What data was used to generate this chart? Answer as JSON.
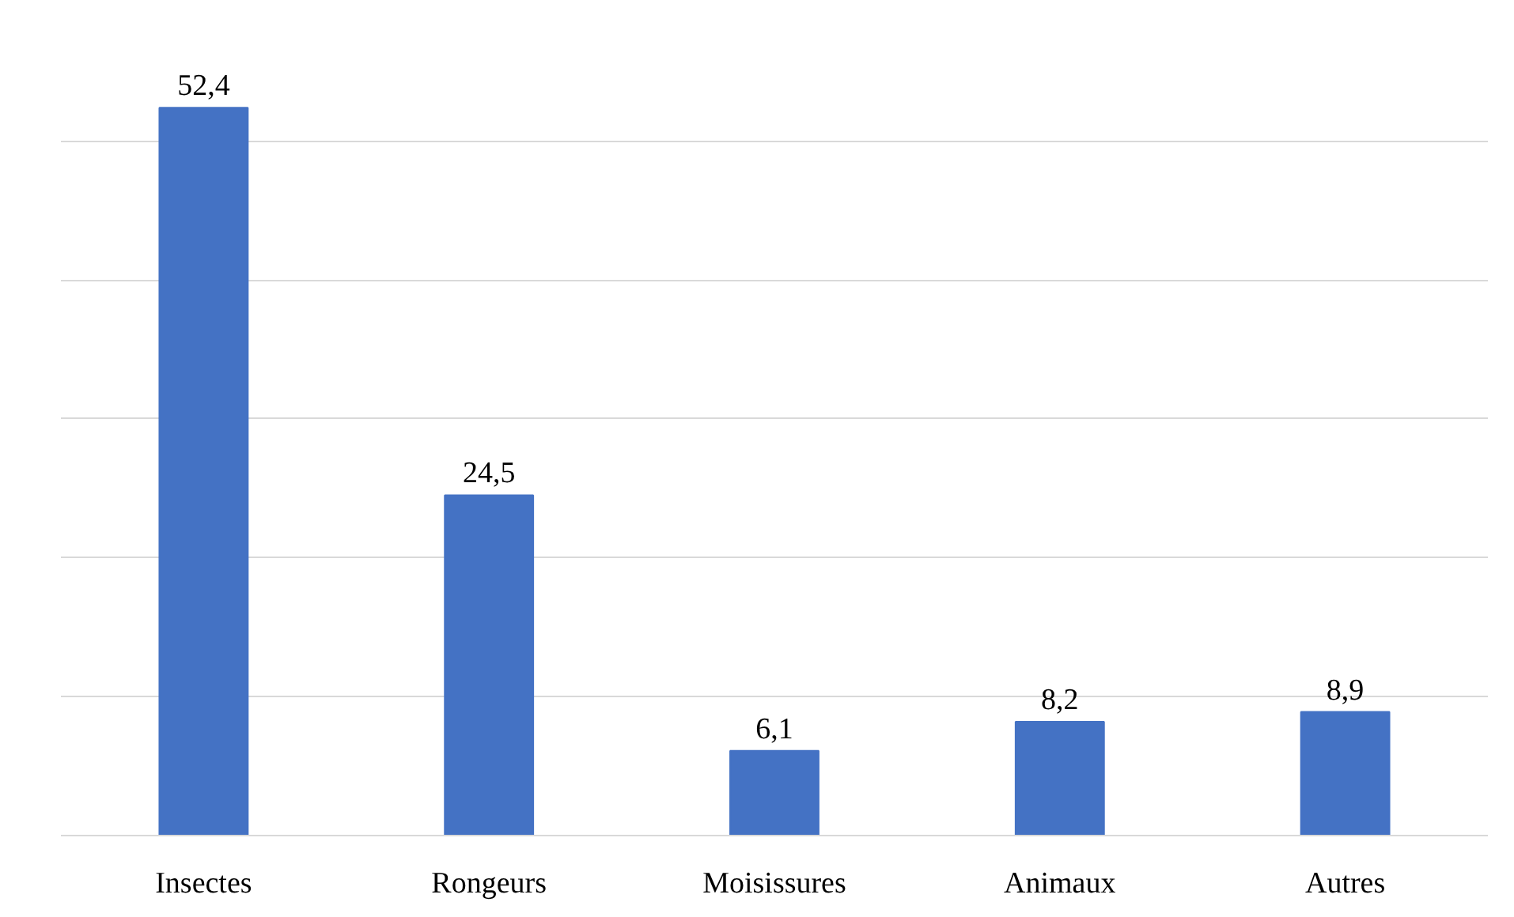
{
  "chart_data": {
    "type": "bar",
    "categories": [
      "Insectes",
      "Rongeurs",
      "Moisissures",
      "Animaux",
      "Autres"
    ],
    "values": [
      52.4,
      24.5,
      6.1,
      8.2,
      8.9
    ],
    "value_labels": [
      "52,4",
      "24,5",
      "6,1",
      "8,2",
      "8,9"
    ],
    "color": "#4472c4",
    "grid": "y",
    "tick_labels": "x"
  }
}
